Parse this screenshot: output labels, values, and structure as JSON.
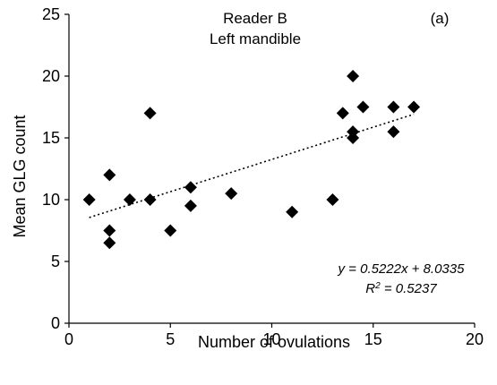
{
  "chart_data": {
    "type": "scatter",
    "title_lines": [
      "Reader B",
      "Left mandible"
    ],
    "panel_label": "(a)",
    "xlabel": "Number of ovulations",
    "ylabel": "Mean GLG count",
    "xlim": [
      0,
      20
    ],
    "ylim": [
      0,
      25
    ],
    "x_ticks": [
      "0",
      "5",
      "10",
      "15",
      "20"
    ],
    "y_ticks": [
      "0",
      "5",
      "10",
      "15",
      "20",
      "25"
    ],
    "grid": false,
    "marker": "diamond",
    "marker_color": "#000000",
    "points": [
      {
        "x": 1,
        "y": 10
      },
      {
        "x": 2,
        "y": 12
      },
      {
        "x": 2,
        "y": 7.5
      },
      {
        "x": 2,
        "y": 6.5
      },
      {
        "x": 3,
        "y": 10
      },
      {
        "x": 4,
        "y": 17
      },
      {
        "x": 4,
        "y": 10
      },
      {
        "x": 5,
        "y": 7.5
      },
      {
        "x": 6,
        "y": 11
      },
      {
        "x": 6,
        "y": 9.5
      },
      {
        "x": 8,
        "y": 10.5
      },
      {
        "x": 11,
        "y": 9
      },
      {
        "x": 13,
        "y": 10
      },
      {
        "x": 13.5,
        "y": 17
      },
      {
        "x": 14,
        "y": 20
      },
      {
        "x": 14,
        "y": 15.5
      },
      {
        "x": 14,
        "y": 15
      },
      {
        "x": 14.5,
        "y": 17.5
      },
      {
        "x": 16,
        "y": 17.5
      },
      {
        "x": 16,
        "y": 15.5
      },
      {
        "x": 17,
        "y": 17.5
      }
    ],
    "trendline": {
      "slope": 0.5222,
      "intercept": 8.0335,
      "x_from": 1,
      "x_to": 17,
      "style": "dotted",
      "equation_text": "y = 0.5222x + 8.0335",
      "r2_prefix": "R",
      "r2_sup": "2",
      "r2_value": " = 0.5237"
    }
  }
}
